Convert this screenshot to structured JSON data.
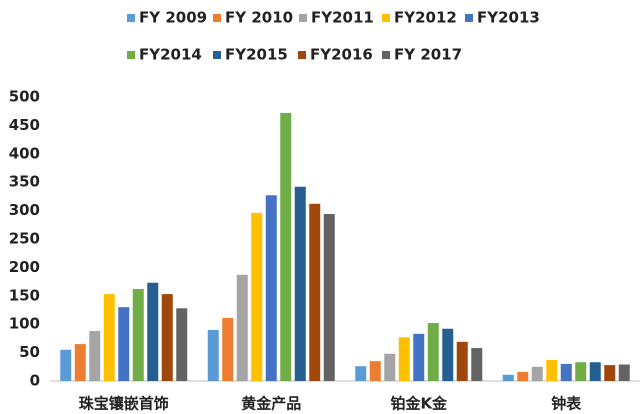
{
  "chart_data": {
    "type": "bar",
    "categories": [
      "珠宝镶嵌首饰",
      "黄金产品",
      "铂金K金",
      "钟表"
    ],
    "series": [
      {
        "name": "FY 2009",
        "color": "#5b9bd5",
        "values": [
          55,
          90,
          26,
          11
        ]
      },
      {
        "name": "FY 2010",
        "color": "#ed7d31",
        "values": [
          65,
          111,
          35,
          16
        ]
      },
      {
        "name": "FY2011",
        "color": "#a5a5a5",
        "values": [
          88,
          187,
          48,
          25
        ]
      },
      {
        "name": "FY2012",
        "color": "#ffc000",
        "values": [
          153,
          296,
          77,
          37
        ]
      },
      {
        "name": "FY2013",
        "color": "#4472c4",
        "values": [
          130,
          327,
          83,
          30
        ]
      },
      {
        "name": "FY2014",
        "color": "#70ad47",
        "values": [
          162,
          472,
          102,
          33
        ]
      },
      {
        "name": "FY2015",
        "color": "#255e91",
        "values": [
          173,
          342,
          92,
          33
        ]
      },
      {
        "name": "FY2016",
        "color": "#9e480e",
        "values": [
          153,
          312,
          69,
          28
        ]
      },
      {
        "name": "FY 2017",
        "color": "#636363",
        "values": [
          128,
          294,
          58,
          29
        ]
      }
    ],
    "ylim": [
      0,
      500
    ],
    "yticks": [
      0,
      50,
      100,
      150,
      200,
      250,
      300,
      350,
      400,
      450,
      500
    ],
    "grid": false,
    "legend": "top"
  }
}
